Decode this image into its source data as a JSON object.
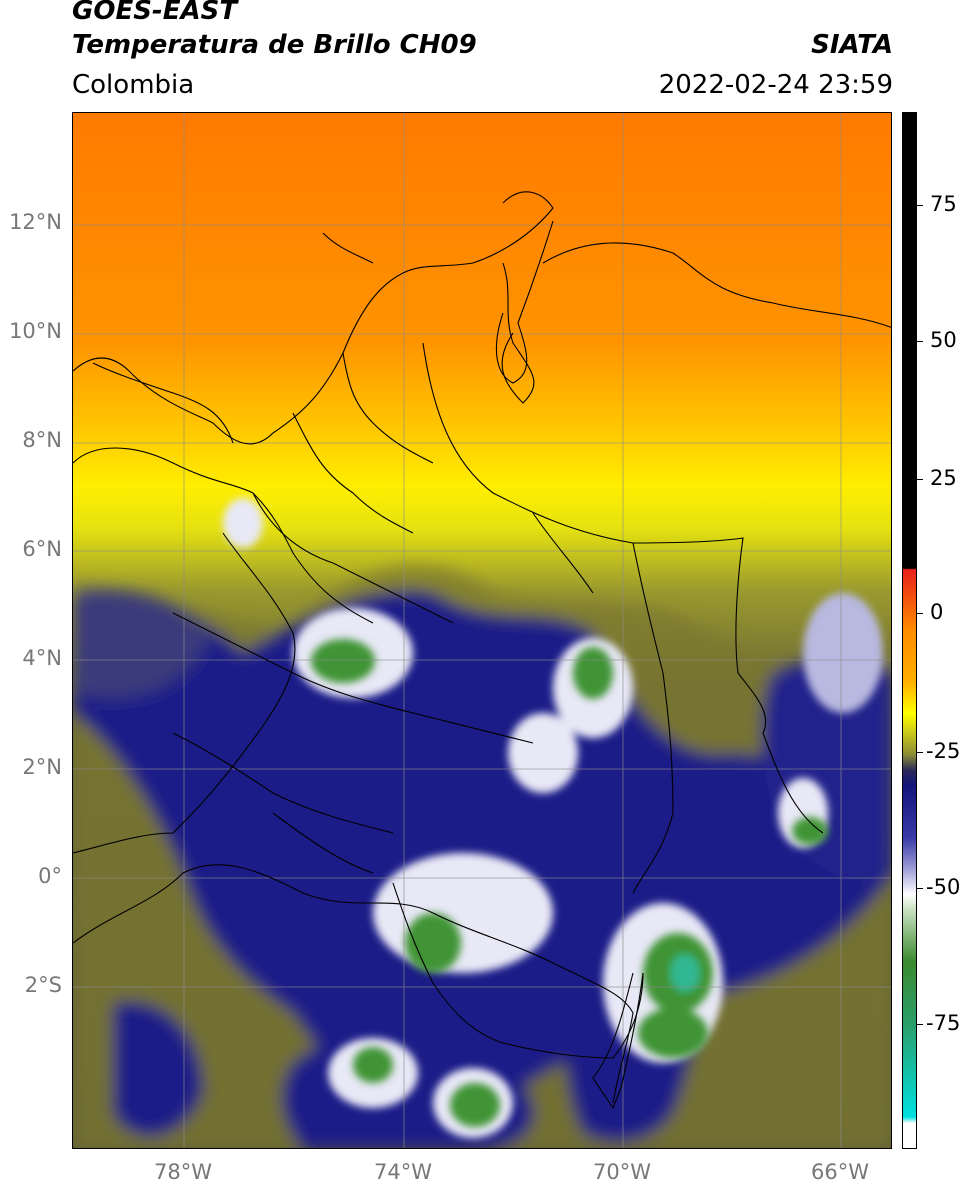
{
  "header": {
    "satellite": "GOES-EAST",
    "product": "Temperatura de Brillo CH09",
    "region": "Colombia",
    "organization": "SIATA",
    "datetime": "2022-02-24 23:59"
  },
  "map": {
    "lat_ticks": [
      "12°N",
      "10°N",
      "8°N",
      "6°N",
      "4°N",
      "2°N",
      "0°",
      "2°S"
    ],
    "lon_ticks": [
      "78°W",
      "74°W",
      "70°W",
      "66°W"
    ]
  },
  "colorbar": {
    "ticks": [
      "75",
      "50",
      "25",
      "0",
      "-25",
      "-50",
      "-75"
    ],
    "colors": {
      "black": "#000000",
      "red": "#e8201a",
      "orange": "#ff8c00",
      "yellow": "#ffff00",
      "olive": "#6b6b2a",
      "navy": "#14147a",
      "white": "#ffffff",
      "green": "#3a8a2e",
      "cyan": "#00e0e0"
    }
  }
}
